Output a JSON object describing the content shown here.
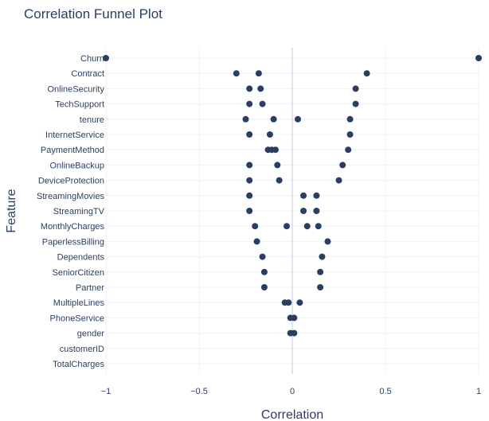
{
  "chart_data": {
    "type": "scatter",
    "title": "Correlation Funnel Plot",
    "xlabel": "Correlation",
    "ylabel": "Feature",
    "xlim": [
      -1,
      1
    ],
    "xticks": [
      {
        "value": -1,
        "label": "−1"
      },
      {
        "value": -0.5,
        "label": "−0.5"
      },
      {
        "value": 0,
        "label": "0"
      },
      {
        "value": 0.5,
        "label": "0.5"
      },
      {
        "value": 1,
        "label": "1"
      }
    ],
    "grid": true,
    "color": "#2a3f5f",
    "categories": [
      "Churn",
      "Contract",
      "OnlineSecurity",
      "TechSupport",
      "tenure",
      "InternetService",
      "PaymentMethod",
      "OnlineBackup",
      "DeviceProtection",
      "StreamingMovies",
      "StreamingTV",
      "MonthlyCharges",
      "PaperlessBilling",
      "Dependents",
      "SeniorCitizen",
      "Partner",
      "MultipleLines",
      "PhoneService",
      "gender",
      "customerID",
      "TotalCharges"
    ],
    "points": [
      {
        "feature": "Churn",
        "values": [
          -1.0,
          1.0
        ]
      },
      {
        "feature": "Contract",
        "values": [
          -0.3,
          -0.18,
          0.4
        ]
      },
      {
        "feature": "OnlineSecurity",
        "values": [
          -0.23,
          -0.17,
          0.34
        ]
      },
      {
        "feature": "TechSupport",
        "values": [
          -0.23,
          -0.16,
          0.34
        ]
      },
      {
        "feature": "tenure",
        "values": [
          -0.25,
          -0.1,
          0.03,
          0.31
        ]
      },
      {
        "feature": "InternetService",
        "values": [
          -0.23,
          -0.12,
          0.31
        ]
      },
      {
        "feature": "PaymentMethod",
        "values": [
          -0.13,
          -0.11,
          -0.09,
          0.3
        ]
      },
      {
        "feature": "OnlineBackup",
        "values": [
          -0.23,
          -0.08,
          0.27
        ]
      },
      {
        "feature": "DeviceProtection",
        "values": [
          -0.23,
          -0.07,
          0.25
        ]
      },
      {
        "feature": "StreamingMovies",
        "values": [
          -0.23,
          0.06,
          0.13
        ]
      },
      {
        "feature": "StreamingTV",
        "values": [
          -0.23,
          0.06,
          0.13
        ]
      },
      {
        "feature": "MonthlyCharges",
        "values": [
          -0.2,
          -0.03,
          0.08,
          0.14
        ]
      },
      {
        "feature": "PaperlessBilling",
        "values": [
          -0.19,
          0.19
        ]
      },
      {
        "feature": "Dependents",
        "values": [
          -0.16,
          0.16
        ]
      },
      {
        "feature": "SeniorCitizen",
        "values": [
          -0.15,
          0.15
        ]
      },
      {
        "feature": "Partner",
        "values": [
          -0.15,
          0.15
        ]
      },
      {
        "feature": "MultipleLines",
        "values": [
          -0.04,
          -0.02,
          0.04
        ]
      },
      {
        "feature": "PhoneService",
        "values": [
          -0.01,
          0.01
        ]
      },
      {
        "feature": "gender",
        "values": [
          -0.01,
          0.01
        ]
      },
      {
        "feature": "customerID",
        "values": []
      },
      {
        "feature": "TotalCharges",
        "values": []
      }
    ]
  }
}
